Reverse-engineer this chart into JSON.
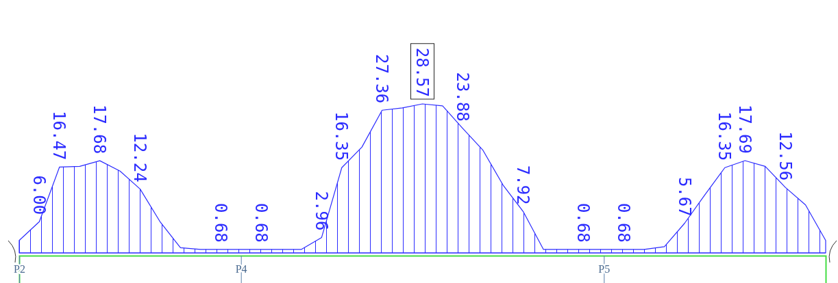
{
  "chart_data": {
    "type": "area",
    "categories": [
      "P2",
      null,
      null,
      null,
      null,
      null,
      null,
      null,
      null,
      null,
      null,
      "P4",
      null,
      null,
      null,
      null,
      null,
      null,
      null,
      null,
      null,
      null,
      null,
      null,
      null,
      null,
      null,
      null,
      null,
      "P5",
      null,
      null,
      null,
      null,
      null,
      null,
      null,
      null,
      null,
      null,
      null
    ],
    "series": [
      {
        "color": "#2b2bff",
        "values": [
          2.4,
          6.0,
          16.47,
          16.6,
          17.68,
          15.7,
          12.24,
          5.9,
          1.0,
          0.68,
          0.68,
          0.68,
          0.68,
          0.68,
          0.68,
          2.96,
          16.35,
          20.3,
          27.36,
          27.8,
          28.57,
          28.2,
          23.88,
          19.7,
          13.0,
          7.92,
          0.68,
          0.68,
          0.68,
          0.68,
          0.68,
          0.68,
          1.2,
          5.67,
          11.1,
          16.35,
          17.69,
          16.6,
          12.56,
          9.2,
          2.4
        ],
        "value_labels": [
          null,
          "6.00",
          "16.47",
          null,
          "17.68",
          null,
          "12.24",
          null,
          null,
          null,
          "0.68",
          null,
          "0.68",
          null,
          null,
          "2.96",
          "16.35",
          null,
          "27.36",
          null,
          "28.57",
          null,
          "23.88",
          null,
          null,
          "7.92",
          null,
          null,
          "0.68",
          null,
          "0.68",
          null,
          null,
          "5.67",
          null,
          "16.35",
          "17.69",
          null,
          "12.56",
          null,
          null
        ]
      }
    ],
    "tick_labels": "x"
  }
}
